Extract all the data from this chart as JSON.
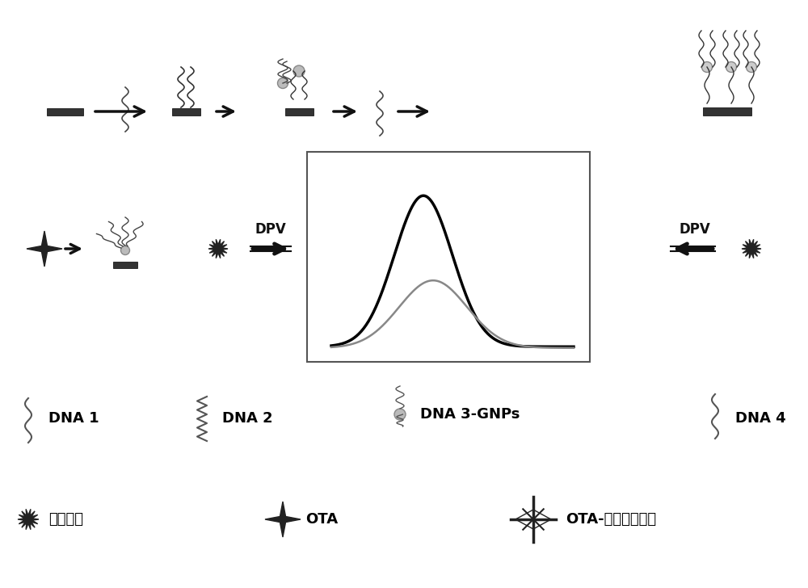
{
  "bg_color": "#f5f5f5",
  "title": "",
  "legend_labels": {
    "dna1": "DNA 1",
    "dna2": "DNA 2",
    "dna3": "DNA 3-GNPs",
    "dna4": "DNA 4",
    "mb": "亚甲基蓝",
    "ota": "OTA",
    "ota_complex": "OTA-适配体复合物"
  },
  "dpv_label": "DPV"
}
